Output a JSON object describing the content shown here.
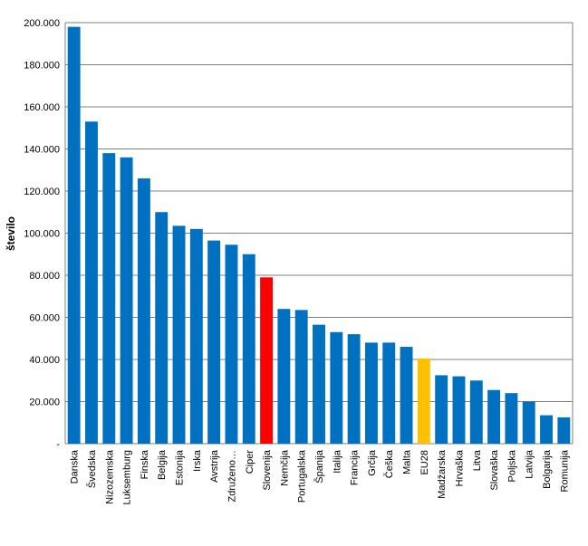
{
  "chart_data": {
    "type": "bar",
    "title": "",
    "xlabel": "",
    "ylabel": "število",
    "ylim": [
      0,
      200000
    ],
    "yticks": [
      0,
      20000,
      40000,
      60000,
      80000,
      100000,
      120000,
      140000,
      160000,
      180000,
      200000
    ],
    "ytick_labels": [
      "-",
      "20.000",
      "40.000",
      "60.000",
      "80.000",
      "100.000",
      "120.000",
      "140.000",
      "160.000",
      "180.000",
      "200.000"
    ],
    "grid": true,
    "legend": "none",
    "categories": [
      "Danska",
      "Švedska",
      "Nizozemska",
      "Luksemburg",
      "Finska",
      "Belgija",
      "Estonija",
      "Irska",
      "Avstrija",
      "Združeno…",
      "Ciper",
      "Slovenija",
      "Nemčija",
      "Portugalska",
      "Španija",
      "Italija",
      "Francija",
      "Grčija",
      "Češka",
      "Malta",
      "EU28",
      "Madžarska",
      "Hrvaška",
      "Litva",
      "Slovaška",
      "Poljska",
      "Latvija",
      "Bolgarija",
      "Romunija"
    ],
    "values": [
      198000,
      153000,
      138000,
      136000,
      126000,
      110000,
      103500,
      102000,
      96500,
      94500,
      90000,
      79000,
      64000,
      63500,
      56500,
      53000,
      52000,
      48000,
      48000,
      46000,
      40500,
      32500,
      32000,
      30000,
      25500,
      24000,
      20000,
      13500,
      12500
    ],
    "colors": {
      "default": "#0070c0",
      "Slovenija": "#ff0000",
      "EU28": "#ffc000"
    },
    "grid_color": "#808080",
    "axis_color": "#808080"
  }
}
